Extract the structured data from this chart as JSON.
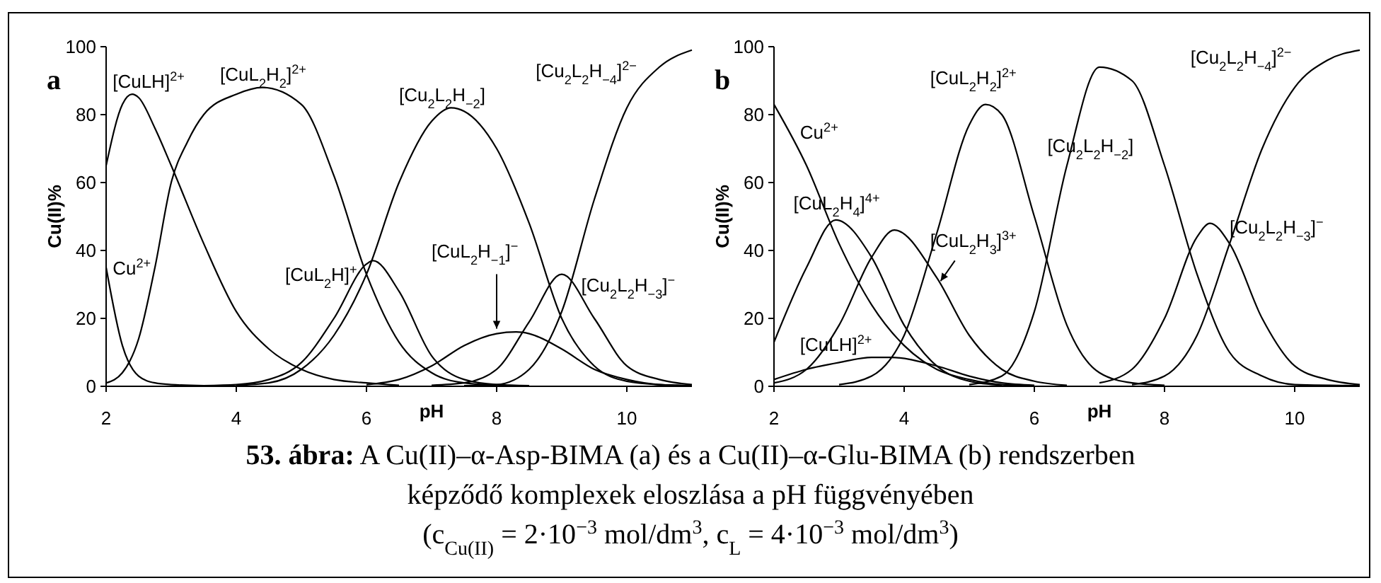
{
  "chart_data": [
    {
      "type": "line",
      "title": "a",
      "xlabel": "pH",
      "ylabel": "Cu(II)%",
      "xlim": [
        2,
        11
      ],
      "ylim": [
        0,
        100
      ],
      "xticks": [
        2,
        4,
        6,
        8,
        10
      ],
      "yticks": [
        0,
        20,
        40,
        60,
        80,
        100
      ],
      "grid": false,
      "annotations": [
        "53. ábra: A Cu(II)–α-Asp-BIMA (a) és  a Cu(II)–α-Glu-BIMA (b) rendszerben",
        "képződő komplexek eloszlása a pH függvényében",
        "(c$_{Cu(II)}$ = 2·10$^{−3}$ mol/dm$^{3}$, c$_{L}$ = 4·10$^{−3}$ mol/dm$^{3}$)"
      ],
      "series": [
        {
          "name": "Cu$^{2+}$",
          "color": "#000000",
          "x": [
            2,
            2.25,
            2.5,
            2.75,
            3,
            3.5
          ],
          "values": [
            35,
            12,
            3,
            1,
            0.5,
            0.2
          ]
        },
        {
          "name": "[CuLH]$^{2+}$",
          "color": "#000000",
          "x": [
            2,
            2.25,
            2.4,
            2.5,
            2.75,
            3,
            3.5,
            4,
            4.5,
            5,
            5.5,
            6,
            6.5
          ],
          "values": [
            65,
            83,
            86,
            85,
            76,
            65,
            42,
            22,
            11,
            5,
            2,
            1,
            0.3
          ]
        },
        {
          "name": "[CuL$_{2}$H$_{2}$]$^{2+}$",
          "color": "#000000",
          "x": [
            2,
            2.25,
            2.5,
            2.75,
            3,
            3.25,
            3.5,
            4,
            4.4,
            5,
            5.5,
            6,
            6.5,
            7,
            7.5,
            8
          ],
          "values": [
            1,
            4,
            14,
            35,
            60,
            72,
            80,
            86,
            88,
            83,
            62,
            33,
            13,
            4,
            1,
            0.3
          ]
        },
        {
          "name": "[CuL$_{2}$H]$^{+}$",
          "color": "#000000",
          "x": [
            3.5,
            4,
            4.5,
            5,
            5.5,
            6,
            6.1,
            6.5,
            7,
            7.5,
            8,
            8.5
          ],
          "values": [
            0.2,
            0.5,
            2,
            7,
            20,
            36,
            37,
            28,
            9,
            2,
            0.5,
            0.2
          ]
        },
        {
          "name": "[Cu$_{2}$L$_{2}$H$_{−2}$]",
          "color": "#000000",
          "x": [
            4,
            4.5,
            5,
            5.5,
            6,
            6.5,
            7,
            7.3,
            7.5,
            8,
            8.5,
            9,
            9.5,
            10,
            10.5,
            11
          ],
          "values": [
            0.3,
            1,
            5,
            15,
            33,
            60,
            78,
            82,
            81,
            70,
            48,
            20,
            6,
            1.5,
            0.5,
            0.2
          ]
        },
        {
          "name": "[CuL$_{2}$H$_{−1}$]$^{−}$",
          "color": "#000000",
          "x": [
            6,
            6.5,
            7,
            7.5,
            8,
            8.3,
            8.5,
            9,
            9.5,
            10,
            10.5,
            11
          ],
          "values": [
            0.5,
            2,
            6,
            12,
            15.5,
            16,
            15.5,
            11,
            5,
            2,
            0.5,
            0.2
          ]
        },
        {
          "name": "[Cu$_{2}$L$_{2}$H$_{−3}$]$^{−}$",
          "color": "#000000",
          "x": [
            7,
            7.5,
            8,
            8.5,
            9,
            9.5,
            10,
            10.5,
            11
          ],
          "values": [
            0.3,
            1,
            5,
            19,
            33,
            20,
            6,
            2,
            0.5
          ]
        },
        {
          "name": "[Cu$_{2}$L$_{2}$H$_{−4}$]$^{2−}$",
          "color": "#000000",
          "x": [
            7.5,
            8,
            8.5,
            9,
            9.5,
            10,
            10.5,
            11
          ],
          "values": [
            0.2,
            0.5,
            5,
            22,
            55,
            82,
            94,
            99
          ]
        }
      ]
    },
    {
      "type": "line",
      "title": "b",
      "xlabel": "pH",
      "ylabel": "Cu(II)%",
      "xlim": [
        2,
        11
      ],
      "ylim": [
        0,
        100
      ],
      "xticks": [
        2,
        4,
        6,
        8,
        10
      ],
      "yticks": [
        0,
        20,
        40,
        60,
        80,
        100
      ],
      "grid": false,
      "series": [
        {
          "name": "Cu$^{2+}$",
          "color": "#000000",
          "x": [
            2,
            2.5,
            3,
            3.5,
            4,
            4.5,
            5,
            5.5,
            6
          ],
          "values": [
            83,
            65,
            42,
            24,
            12,
            5,
            2,
            0.5,
            0.2
          ]
        },
        {
          "name": "[CuL$_{2}$H$_{4}$]$^{4+}$",
          "color": "#000000",
          "x": [
            2,
            2.5,
            2.95,
            3.5,
            4,
            4.5,
            5,
            5.5
          ],
          "values": [
            13,
            35,
            49,
            38,
            18,
            6,
            1.5,
            0.3
          ]
        },
        {
          "name": "[CuLH]$^{2+}$",
          "color": "#000000",
          "x": [
            2,
            2.5,
            3,
            3.5,
            3.8,
            4.5,
            5,
            5.5,
            6
          ],
          "values": [
            2,
            5,
            7,
            8.5,
            8.5,
            6,
            3,
            1,
            0.3
          ]
        },
        {
          "name": "[CuL$_{2}$H$_{3}$]$^{3+}$",
          "color": "#000000",
          "x": [
            2,
            2.5,
            3,
            3.5,
            3.85,
            4.5,
            5,
            5.5,
            6,
            6.5
          ],
          "values": [
            1,
            5,
            18,
            38,
            46,
            32,
            15,
            5,
            1.5,
            0.3
          ]
        },
        {
          "name": "[CuL$_{2}$H$_{2}$]$^{2+}$",
          "color": "#000000",
          "x": [
            3,
            3.5,
            4,
            4.5,
            5,
            5.25,
            5.5,
            6,
            6.5,
            7,
            7.5,
            8
          ],
          "values": [
            0.5,
            3,
            15,
            45,
            77,
            83,
            80,
            50,
            18,
            4,
            1,
            0.3
          ]
        },
        {
          "name": "[Cu$_{2}$L$_{2}$H$_{−2}$]",
          "color": "#000000",
          "x": [
            5,
            5.5,
            6,
            6.5,
            7,
            7.5,
            8,
            8.5,
            9,
            9.5,
            10,
            11
          ],
          "values": [
            0.5,
            3,
            22,
            65,
            94,
            90,
            65,
            33,
            10,
            3,
            0.5,
            0.2
          ]
        },
        {
          "name": "[Cu$_{2}$L$_{2}$H$_{−3}$]$^{−}$",
          "color": "#000000",
          "x": [
            7,
            7.5,
            8,
            8.5,
            8.7,
            9,
            9.5,
            10,
            10.5,
            11
          ],
          "values": [
            1,
            5,
            20,
            44,
            48,
            42,
            20,
            6,
            2,
            0.5
          ]
        },
        {
          "name": "[Cu$_{2}$L$_{2}$H$_{−4}$]$^{2−}$",
          "color": "#000000",
          "x": [
            7.5,
            8,
            8.5,
            9,
            9.5,
            10,
            10.5,
            11
          ],
          "values": [
            0.5,
            3,
            15,
            42,
            70,
            88,
            96,
            99
          ]
        }
      ]
    }
  ]
}
